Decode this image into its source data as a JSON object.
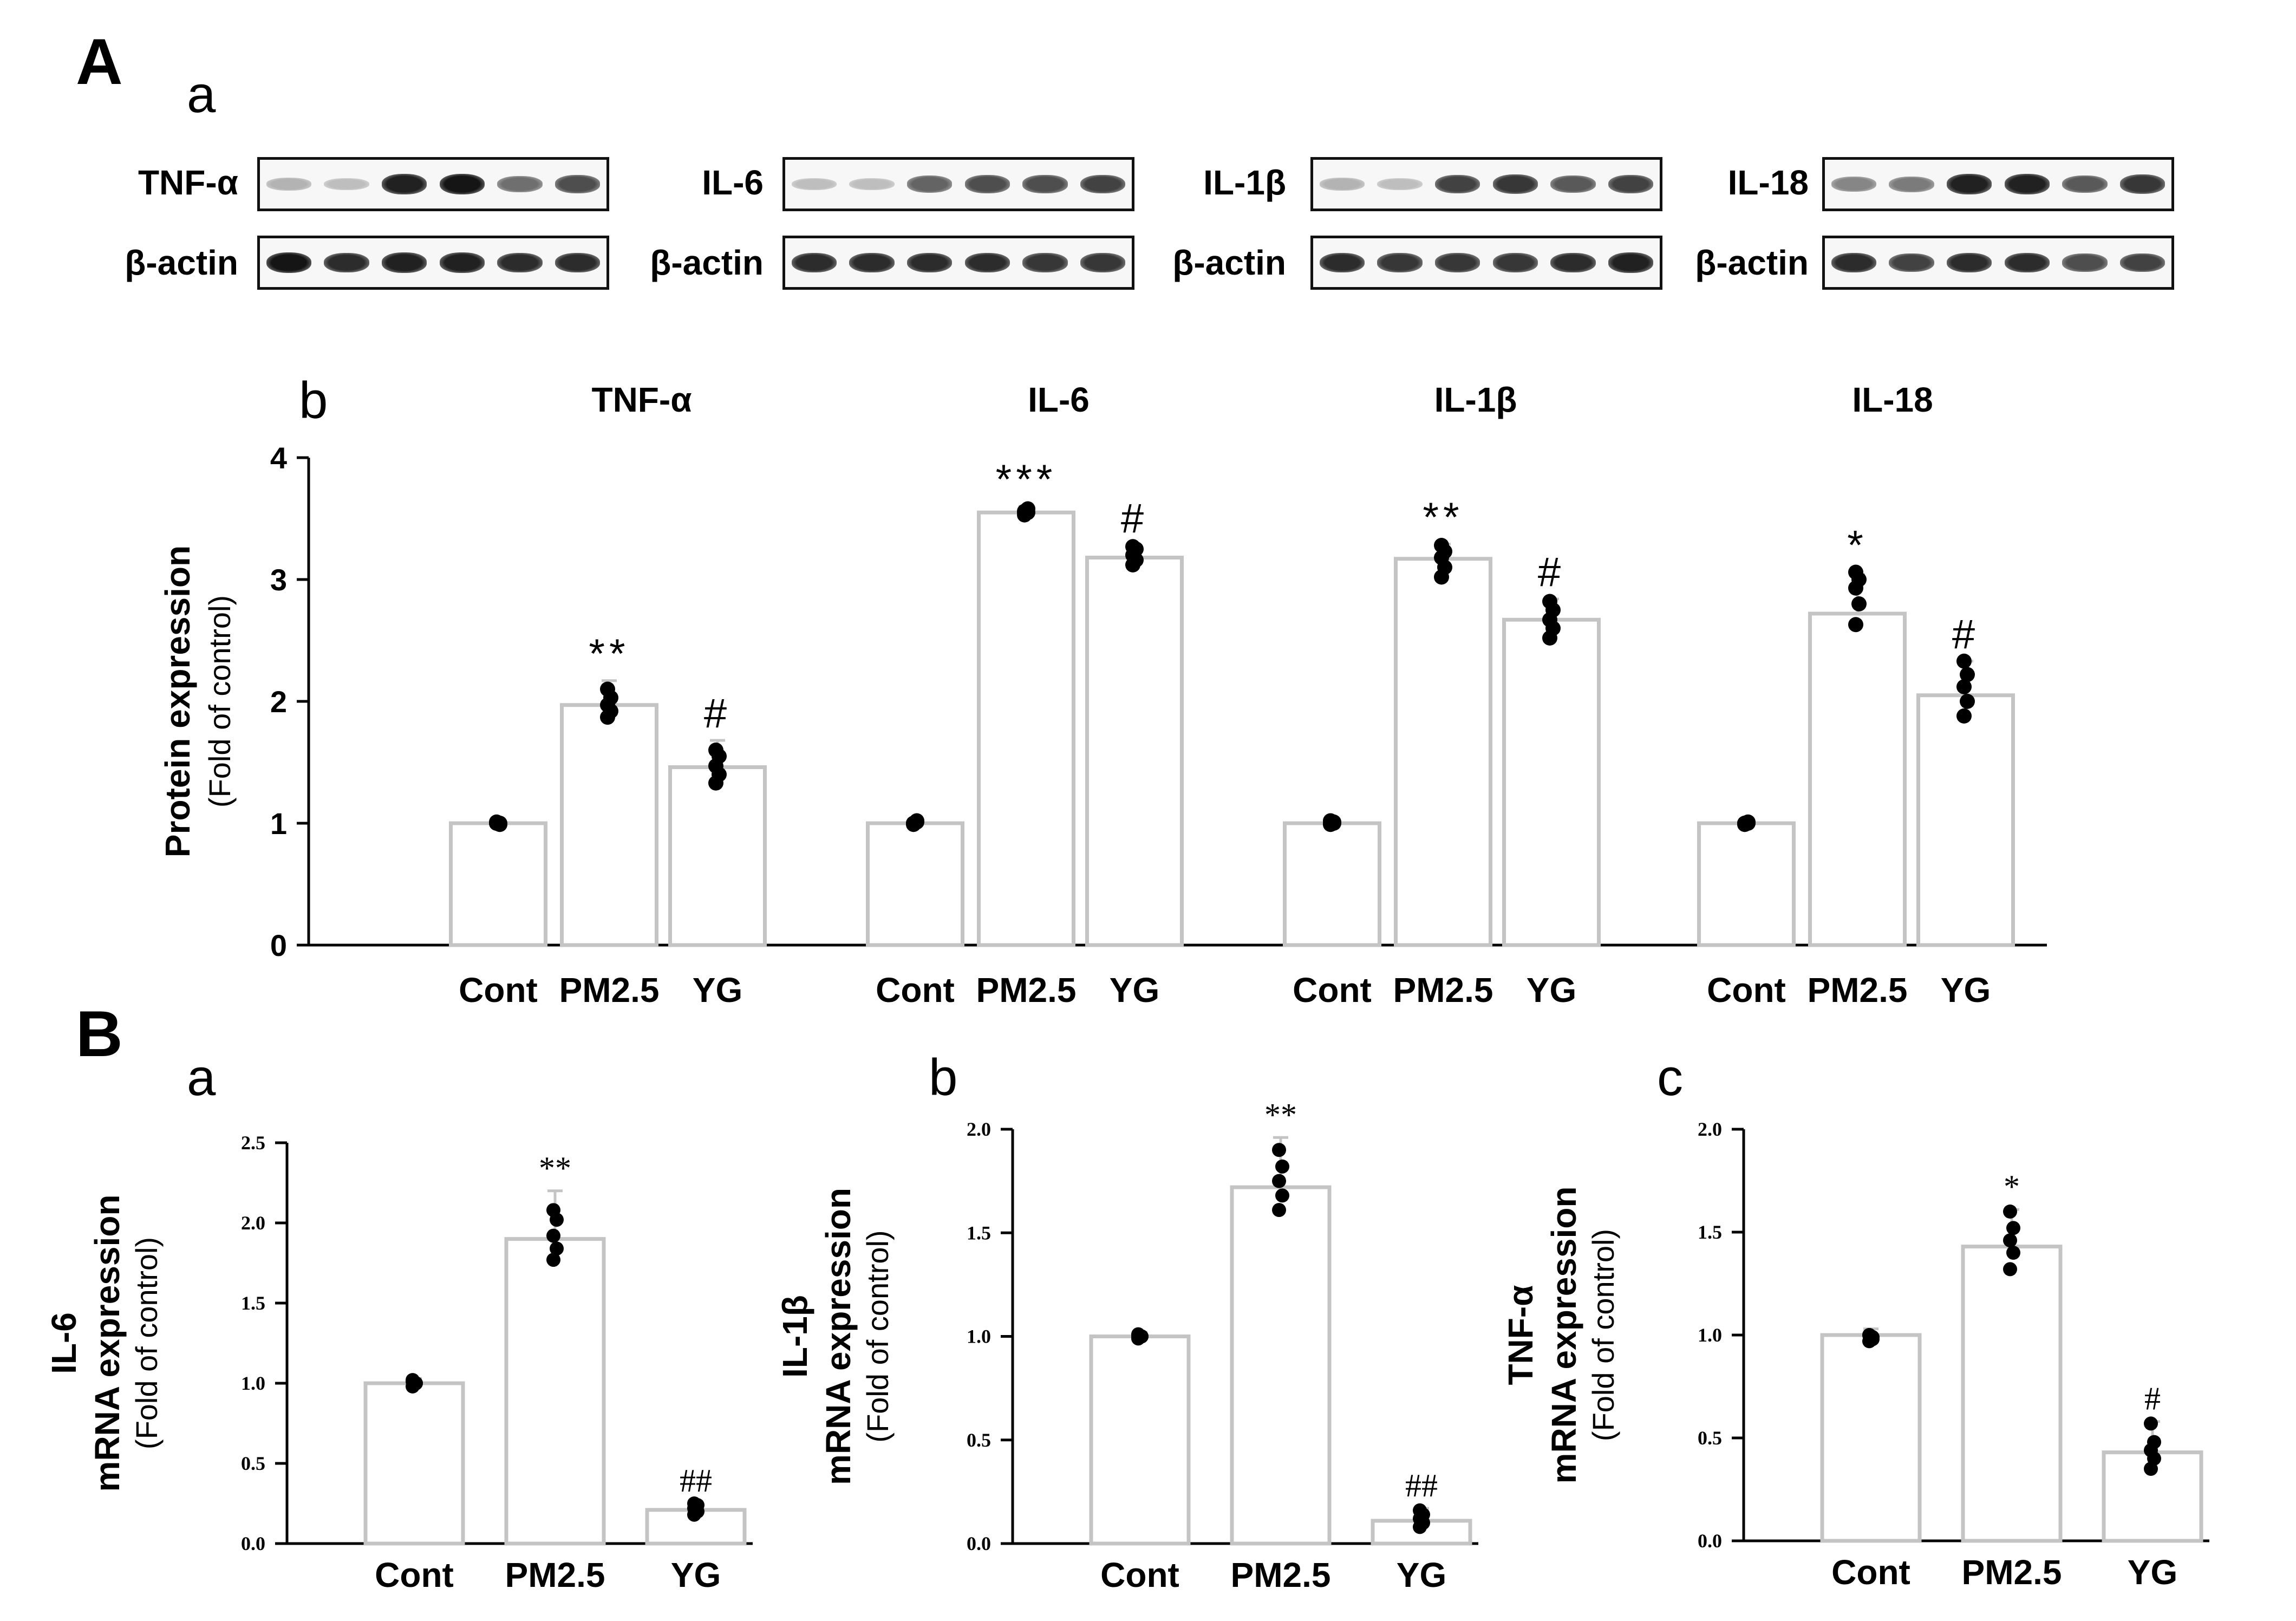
{
  "panel_labels": {
    "A": "A",
    "A_a": "a",
    "A_b": "b",
    "B": "B",
    "B_a": "a",
    "B_b": "b",
    "B_c": "c"
  },
  "western_blots": [
    {
      "protein": "TNF-α",
      "control": "β-actin",
      "lanes": 6,
      "intensity": [
        0.25,
        0.2,
        0.9,
        0.95,
        0.55,
        0.7
      ],
      "actin_intensity": [
        0.95,
        0.85,
        0.9,
        0.9,
        0.85,
        0.85
      ]
    },
    {
      "protein": "IL-6",
      "control": "β-actin",
      "lanes": 6,
      "intensity": [
        0.2,
        0.2,
        0.6,
        0.7,
        0.7,
        0.75
      ],
      "actin_intensity": [
        0.85,
        0.85,
        0.85,
        0.85,
        0.8,
        0.8
      ]
    },
    {
      "protein": "IL-1β",
      "control": "β-actin",
      "lanes": 6,
      "intensity": [
        0.25,
        0.2,
        0.75,
        0.8,
        0.65,
        0.75
      ],
      "actin_intensity": [
        0.85,
        0.8,
        0.8,
        0.8,
        0.85,
        0.9
      ]
    },
    {
      "protein": "IL-18",
      "control": "β-actin",
      "lanes": 6,
      "intensity": [
        0.45,
        0.5,
        0.9,
        0.9,
        0.65,
        0.8
      ],
      "actin_intensity": [
        0.85,
        0.75,
        0.85,
        0.85,
        0.7,
        0.75
      ]
    }
  ],
  "chart_data": [
    {
      "id": "A_b",
      "type": "bar",
      "ylabel": "Protein expression",
      "ylabel_sub": "(Fold of control)",
      "ylim": [
        0,
        4
      ],
      "yticks": [
        "0",
        "1",
        "2",
        "3",
        "4"
      ],
      "groups": [
        {
          "title": "TNF-α",
          "categories": [
            "Cont",
            "PM2.5",
            "YG"
          ],
          "values": [
            1.0,
            1.97,
            1.46
          ],
          "errors": [
            0.02,
            0.2,
            0.22
          ],
          "annotations": [
            "",
            "**",
            "#"
          ],
          "points": [
            [
              1.0,
              1.0,
              1.01,
              0.99,
              1.0
            ],
            [
              1.87,
              1.92,
              1.97,
              2.03,
              2.1
            ],
            [
              1.33,
              1.4,
              1.47,
              1.55,
              1.6
            ]
          ]
        },
        {
          "title": "IL-6",
          "categories": [
            "Cont",
            "PM2.5",
            "YG"
          ],
          "values": [
            1.0,
            3.55,
            3.18
          ],
          "errors": [
            0.03,
            0.05,
            0.1
          ],
          "annotations": [
            "",
            "***",
            "#"
          ],
          "points": [
            [
              1.0,
              1.02,
              0.99,
              1.01,
              1.0
            ],
            [
              3.53,
              3.55,
              3.56,
              3.58,
              3.55
            ],
            [
              3.12,
              3.16,
              3.2,
              3.25,
              3.27
            ]
          ]
        },
        {
          "title": "IL-1β",
          "categories": [
            "Cont",
            "PM2.5",
            "YG"
          ],
          "values": [
            1.0,
            3.17,
            2.67
          ],
          "errors": [
            0.03,
            0.12,
            0.17
          ],
          "annotations": [
            "",
            "**",
            "#"
          ],
          "points": [
            [
              1.0,
              1.01,
              0.99,
              1.0,
              1.02
            ],
            [
              3.02,
              3.1,
              3.18,
              3.23,
              3.28
            ],
            [
              2.52,
              2.6,
              2.67,
              2.75,
              2.82
            ]
          ]
        },
        {
          "title": "IL-18",
          "categories": [
            "Cont",
            "PM2.5",
            "YG"
          ],
          "values": [
            1.0,
            2.72,
            2.05
          ],
          "errors": [
            0.03,
            0.32,
            0.28
          ],
          "annotations": [
            "",
            "*",
            "#"
          ],
          "points": [
            [
              1.0,
              1.01,
              0.99,
              1.0,
              1.0
            ],
            [
              2.63,
              2.8,
              2.93,
              3.0,
              3.06
            ],
            [
              1.88,
              2.0,
              2.12,
              2.22,
              2.33
            ]
          ]
        }
      ]
    },
    {
      "id": "B_a",
      "type": "bar",
      "ylabel_top": "IL-6",
      "ylabel": "mRNA expression",
      "ylabel_sub": "(Fold of control)",
      "ylim": [
        0,
        2.5
      ],
      "yticks": [
        "0.0",
        "0.5",
        "1.0",
        "1.5",
        "2.0",
        "2.5"
      ],
      "categories": [
        "Cont",
        "PM2.5",
        "YG"
      ],
      "values": [
        1.0,
        1.9,
        0.21
      ],
      "errors": [
        0.03,
        0.3,
        0.04
      ],
      "annotations": [
        "",
        "**",
        "##"
      ],
      "points": [
        [
          0.98,
          1.0,
          1.02,
          1.0,
          1.01
        ],
        [
          1.77,
          1.84,
          1.92,
          2.02,
          2.08
        ],
        [
          0.18,
          0.2,
          0.22,
          0.24,
          0.25
        ]
      ]
    },
    {
      "id": "B_b",
      "type": "bar",
      "ylabel_top": "IL-1β",
      "ylabel": "mRNA expression",
      "ylabel_sub": "(Fold of control)",
      "ylim": [
        0,
        2.0
      ],
      "yticks": [
        "0.0",
        "0.5",
        "1.0",
        "1.5",
        "2.0"
      ],
      "categories": [
        "Cont",
        "PM2.5",
        "YG"
      ],
      "values": [
        1.0,
        1.72,
        0.11
      ],
      "errors": [
        0.02,
        0.24,
        0.06
      ],
      "annotations": [
        "",
        "**",
        "##"
      ],
      "points": [
        [
          0.99,
          1.0,
          1.01,
          1.0,
          1.0
        ],
        [
          1.61,
          1.68,
          1.75,
          1.82,
          1.9
        ],
        [
          0.08,
          0.1,
          0.12,
          0.14,
          0.16
        ]
      ]
    },
    {
      "id": "B_c",
      "type": "bar",
      "ylabel_top": "TNF-α",
      "ylabel": "mRNA expression",
      "ylabel_sub": "(Fold of control)",
      "ylim": [
        0,
        2.0
      ],
      "yticks": [
        "0.0",
        "0.5",
        "1.0",
        "1.5",
        "2.0"
      ],
      "categories": [
        "Cont",
        "PM2.5",
        "YG"
      ],
      "values": [
        1.0,
        1.43,
        0.43
      ],
      "errors": [
        0.03,
        0.18,
        0.15
      ],
      "annotations": [
        "",
        "*",
        "#"
      ],
      "points": [
        [
          0.97,
          0.99,
          1.0,
          0.98,
          1.0
        ],
        [
          1.32,
          1.4,
          1.46,
          1.52,
          1.6
        ],
        [
          0.35,
          0.4,
          0.44,
          0.48,
          0.57
        ]
      ]
    }
  ]
}
